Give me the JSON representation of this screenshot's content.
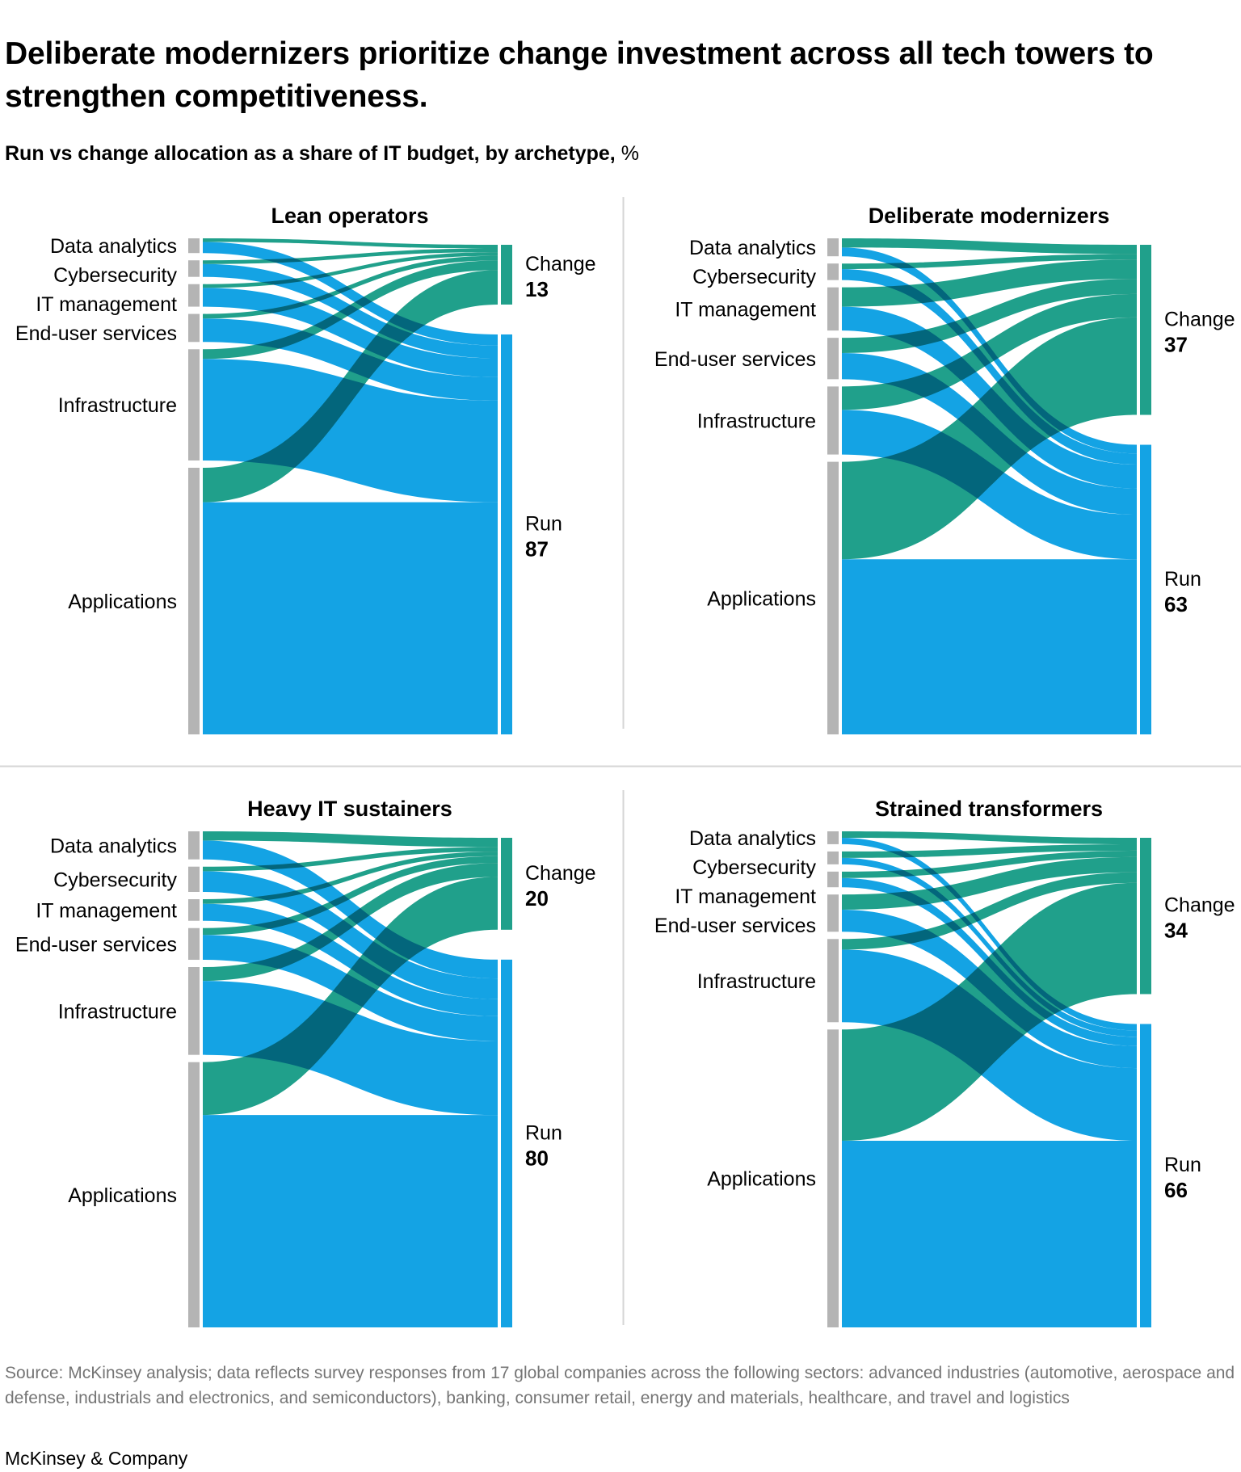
{
  "headline": "Deliberate modernizers prioritize change investment across all tech towers to strengthen competitiveness.",
  "subtitle": {
    "text": "Run vs change allocation as a share of IT budget, by archetype,",
    "unit": " %"
  },
  "chart_data": {
    "type": "sankey",
    "unit_note": "% of IT budget",
    "colors": {
      "run": "#14a3e4",
      "change": "#20a08b",
      "node": "#b4b4b4",
      "divider": "#d6d6d6"
    },
    "panels": [
      {
        "title": "Lean operators",
        "change": {
          "label": "Change",
          "value": 13
        },
        "run": {
          "label": "Run",
          "value": 87
        },
        "categories": [
          {
            "label": "Data analytics",
            "change": 0.8,
            "run": 2.4
          },
          {
            "label": "Cybersecurity",
            "change": 0.8,
            "run": 2.8
          },
          {
            "label": "IT management",
            "change": 0.8,
            "run": 4.1
          },
          {
            "label": "End-user services",
            "change": 1.0,
            "run": 5.1
          },
          {
            "label": "Infrastructure",
            "change": 2.1,
            "run": 22.1
          },
          {
            "label": "Applications",
            "change": 7.5,
            "run": 50.5
          }
        ]
      },
      {
        "title": "Deliberate modernizers",
        "change": {
          "label": "Change",
          "value": 37
        },
        "run": {
          "label": "Run",
          "value": 63
        },
        "categories": [
          {
            "label": "Data analytics",
            "change": 2.0,
            "run": 1.9
          },
          {
            "label": "Cybersecurity",
            "change": 1.2,
            "run": 2.4
          },
          {
            "label": "IT management",
            "change": 4.2,
            "run": 5.2
          },
          {
            "label": "End-user services",
            "change": 3.3,
            "run": 5.7
          },
          {
            "label": "Infrastructure",
            "change": 5.1,
            "run": 9.7
          },
          {
            "label": "Applications",
            "change": 21.2,
            "run": 38.1
          }
        ]
      },
      {
        "title": "Heavy IT sustainers",
        "change": {
          "label": "Change",
          "value": 20
        },
        "run": {
          "label": "Run",
          "value": 80
        },
        "categories": [
          {
            "label": "Data analytics",
            "change": 2.0,
            "run": 4.1
          },
          {
            "label": "Cybersecurity",
            "change": 1.0,
            "run": 4.5
          },
          {
            "label": "IT management",
            "change": 1.0,
            "run": 3.7
          },
          {
            "label": "End-user services",
            "change": 1.5,
            "run": 5.4
          },
          {
            "label": "Infrastructure",
            "change": 3.0,
            "run": 16.1
          },
          {
            "label": "Applications",
            "change": 11.5,
            "run": 46.2
          }
        ]
      },
      {
        "title": "Strained transformers",
        "change": {
          "label": "Change",
          "value": 34
        },
        "run": {
          "label": "Run",
          "value": 66
        },
        "categories": [
          {
            "label": "Data analytics",
            "change": 1.4,
            "run": 1.4
          },
          {
            "label": "Cybersecurity",
            "change": 1.4,
            "run": 1.4
          },
          {
            "label": "IT management",
            "change": 1.4,
            "run": 2.0
          },
          {
            "label": "End-user services",
            "change": 3.3,
            "run": 4.8
          },
          {
            "label": "Infrastructure",
            "change": 2.3,
            "run": 15.8
          },
          {
            "label": "Applications",
            "change": 24.2,
            "run": 40.6
          }
        ]
      }
    ]
  },
  "footnote": "Source: McKinsey analysis; data reflects survey responses from 17 global companies across the following sectors: advanced industries (automotive, aerospace and defense, industrials and electronics, and semiconductors), banking, consumer retail, energy and materials, healthcare, and travel and logistics",
  "logo": "McKinsey & Company"
}
